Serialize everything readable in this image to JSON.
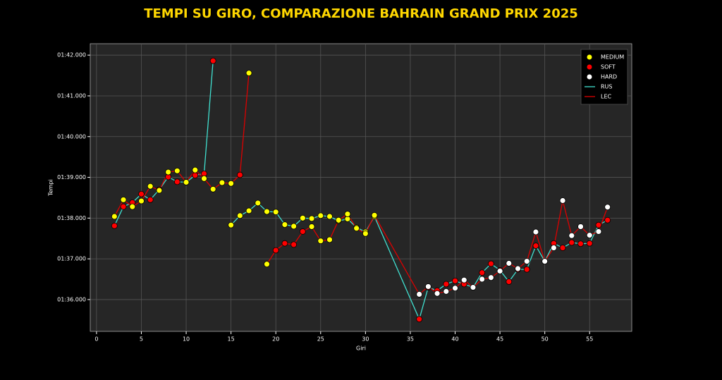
{
  "chart_data": {
    "type": "line",
    "title": "TEMPI SU GIRO, COMPARAZIONE BAHRAIN GRAND PRIX 2025",
    "x_label": "Giri",
    "y_label": "Tempi",
    "x": [
      2,
      3,
      4,
      5,
      6,
      7,
      8,
      9,
      10,
      11,
      12,
      13,
      14,
      15,
      16,
      17,
      18,
      19,
      20,
      21,
      22,
      23,
      24,
      25,
      26,
      27,
      28,
      29,
      30,
      31,
      36,
      37,
      38,
      39,
      40,
      41,
      42,
      43,
      44,
      45,
      46,
      47,
      48,
      49,
      50,
      51,
      52,
      53,
      54,
      55,
      56,
      57
    ],
    "series": [
      {
        "name": "RUS",
        "color": "#40e0d0",
        "values": [
          97.81,
          98.28,
          98.38,
          98.59,
          98.45,
          98.7,
          99.01,
          98.89,
          98.88,
          99.05,
          99.09,
          101.86,
          null,
          97.83,
          98.06,
          98.18,
          98.37,
          98.16,
          98.15,
          97.84,
          97.8,
          98.0,
          97.99,
          98.06,
          98.04,
          97.93,
          97.98,
          97.77,
          97.66,
          98.04,
          95.52,
          96.3,
          96.22,
          96.38,
          96.46,
          96.38,
          96.3,
          96.66,
          96.88,
          96.72,
          96.44,
          96.74,
          96.74,
          97.32,
          96.94,
          97.38,
          97.27,
          97.4,
          97.37,
          97.38,
          97.83,
          97.95
        ],
        "marker_colors": [
          "#ff0000",
          "#ff0000",
          "#ff0000",
          "#ff0000",
          "#ff0000",
          "#ff0000",
          "#ff0000",
          "#ff0000",
          "#ff0000",
          "#ff0000",
          "#ff0000",
          "#ff0000",
          null,
          "#ffff00",
          "#ffff00",
          "#ffff00",
          "#ffff00",
          "#ffff00",
          "#ffff00",
          "#ffff00",
          "#ffff00",
          "#ffff00",
          "#ffff00",
          "#ffff00",
          "#ffff00",
          "#ffff00",
          "#ffff00",
          "#ffff00",
          "#ffff00",
          "#ffff00",
          "#ff0000",
          "#ff0000",
          "#ff0000",
          "#ff0000",
          "#ff0000",
          "#ff0000",
          "#ff0000",
          "#ff0000",
          "#ff0000",
          "#ff0000",
          "#ff0000",
          "#ff0000",
          "#ff0000",
          "#ff0000",
          "#ff0000",
          "#ff0000",
          "#ff0000",
          "#ff0000",
          "#ff0000",
          "#ff0000",
          "#ff0000",
          "#ff0000"
        ]
      },
      {
        "name": "LEC",
        "color": "#dd0000",
        "values": [
          98.04,
          98.45,
          98.28,
          98.42,
          98.78,
          98.68,
          99.13,
          99.16,
          98.88,
          99.18,
          98.97,
          98.71,
          98.87,
          98.85,
          99.06,
          101.56,
          null,
          96.87,
          97.21,
          97.38,
          97.35,
          97.67,
          97.79,
          97.44,
          97.47,
          97.95,
          98.1,
          97.75,
          97.62,
          98.07,
          96.13,
          96.32,
          96.15,
          96.2,
          96.28,
          96.48,
          96.3,
          96.5,
          96.54,
          96.7,
          96.89,
          96.76,
          96.94,
          97.66,
          96.94,
          97.27,
          98.43,
          97.57,
          97.79,
          97.58,
          97.67,
          98.27
        ],
        "marker_colors": [
          "#ffff00",
          "#ffff00",
          "#ffff00",
          "#ffff00",
          "#ffff00",
          "#ffff00",
          "#ffff00",
          "#ffff00",
          "#ffff00",
          "#ffff00",
          "#ffff00",
          "#ffff00",
          "#ffff00",
          "#ffff00",
          "#ff0000",
          "#ffff00",
          null,
          "#ffff00",
          "#ff0000",
          "#ff0000",
          "#ff0000",
          "#ff0000",
          "#ffff00",
          "#ffff00",
          "#ffff00",
          "#ffff00",
          "#ffff00",
          "#ffff00",
          "#ffff00",
          "#ffff00",
          "#ffffff",
          "#ffffff",
          "#ffffff",
          "#ffffff",
          "#ffffff",
          "#ffffff",
          "#ffffff",
          "#ffffff",
          "#ffffff",
          "#ffffff",
          "#ffffff",
          "#ffffff",
          "#ffffff",
          "#ffffff",
          "#ffffff",
          "#ffffff",
          "#ffffff",
          "#ffffff",
          "#ffffff",
          "#ffffff",
          "#ffffff",
          "#ffffff"
        ]
      }
    ],
    "markers": [
      {
        "name": "MEDIUM",
        "color": "#ffff00"
      },
      {
        "name": "SOFT",
        "color": "#ff0000"
      },
      {
        "name": "HARD",
        "color": "#ffffff"
      }
    ],
    "xlim": [
      -0.7,
      59.7
    ],
    "ylim": [
      95.22,
      102.28
    ],
    "xticks": [
      0,
      5,
      10,
      15,
      20,
      25,
      30,
      35,
      40,
      45,
      50,
      55
    ],
    "yticks": [
      {
        "value": 96,
        "label": "01:36.000"
      },
      {
        "value": 97,
        "label": "01:37.000"
      },
      {
        "value": 98,
        "label": "01:38.000"
      },
      {
        "value": 99,
        "label": "01:39.000"
      },
      {
        "value": 100,
        "label": "01:40.000"
      },
      {
        "value": 101,
        "label": "01:41.000"
      },
      {
        "value": 102,
        "label": "01:42.000"
      }
    ],
    "grid": true,
    "legend": "upper right"
  }
}
